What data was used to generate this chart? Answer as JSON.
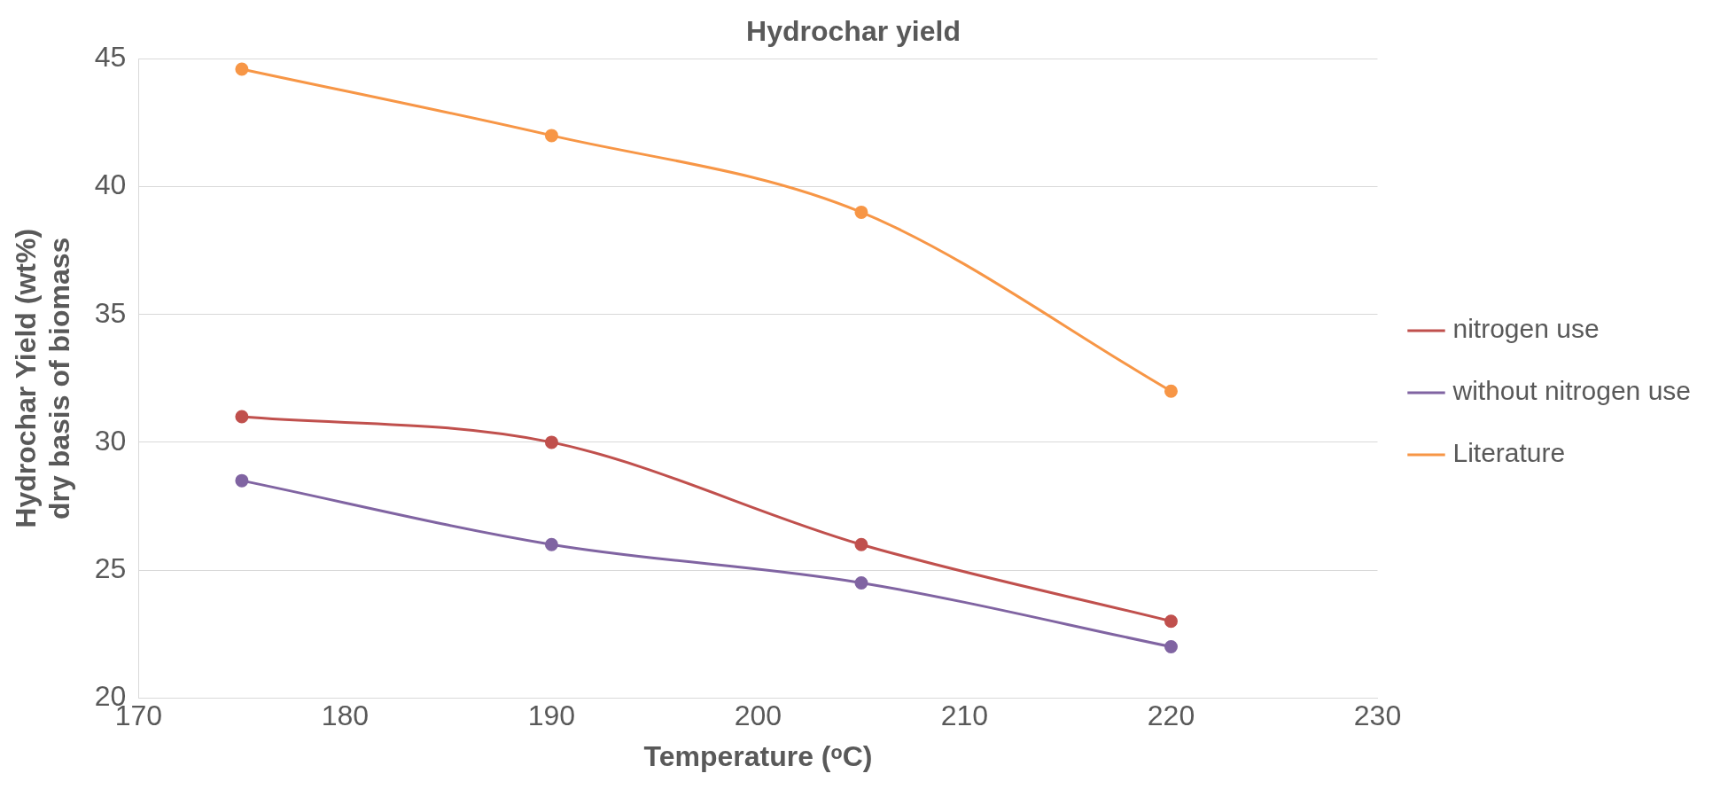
{
  "chart_data": {
    "type": "line",
    "title": "Hydrochar yield",
    "xlabel": "Temperature (ᵒC)",
    "ylabel": "Hydrochar Yield (wt%) dry basis of biomass",
    "x": [
      175,
      190,
      205,
      220
    ],
    "series": [
      {
        "name": "nitrogen use",
        "color": "#c0504d",
        "values": [
          31,
          30,
          26,
          23
        ]
      },
      {
        "name": "without nitrogen use",
        "color": "#8064a2",
        "values": [
          28.5,
          26,
          24.5,
          22
        ]
      },
      {
        "name": "Literature",
        "color": "#f79646",
        "values": [
          44.6,
          42,
          39,
          32
        ]
      }
    ],
    "xlim": [
      170,
      230
    ],
    "xticks": [
      170,
      180,
      190,
      200,
      210,
      220,
      230
    ],
    "ylim": [
      20,
      45
    ],
    "yticks": [
      20,
      25,
      30,
      35,
      40,
      45
    ],
    "grid": "y",
    "legend": "right",
    "marker": "circle",
    "line_style": "solid"
  }
}
